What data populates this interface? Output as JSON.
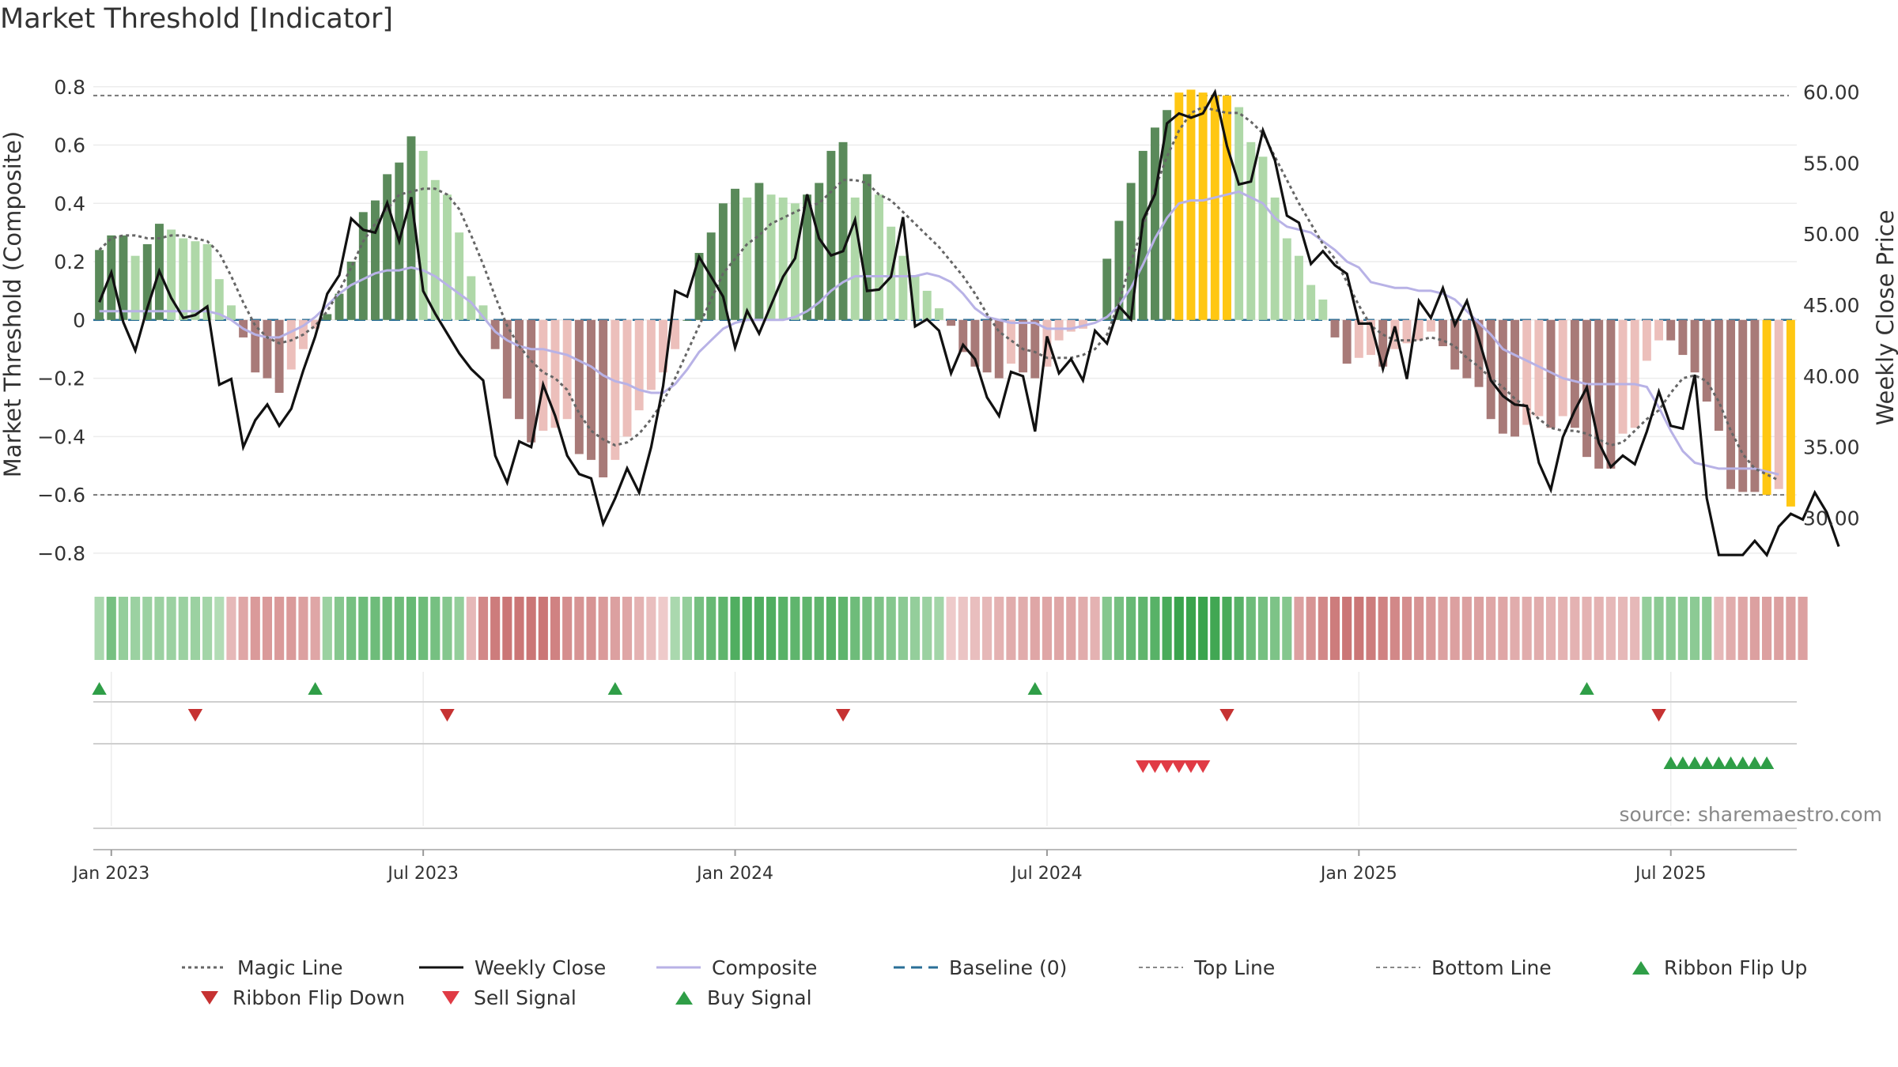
{
  "title": "Market Threshold [Indicator]",
  "source": "source: sharemaestro.com",
  "colors": {
    "bull_strong": "#5a8a5a",
    "bull_weak": "#afd8a8",
    "bear_strong": "#a87a78",
    "bear_weak": "#ecbfbb",
    "extreme": "#ffc712",
    "weekly_close": "#111111",
    "composite": "#b8b2e6",
    "magic_line": "#666666",
    "baseline": "#2a6f97",
    "threshold_line": "#777777",
    "ribbon_up": "#2f9e47",
    "ribbon_down": "#c63232",
    "sell": "#e03b45",
    "buy": "#2f9e47"
  },
  "chart_data": {
    "type": "bar+line",
    "y_left_label": "Market Threshold (Composite)",
    "y_right_label": "Weekly Close Price",
    "y_left_ticks": [
      "0.8",
      "0.6",
      "0.4",
      "0.2",
      "0",
      "−0.2",
      "−0.4",
      "−0.6",
      "−0.8"
    ],
    "y_left_values": [
      0.8,
      0.6,
      0.4,
      0.2,
      0,
      -0.2,
      -0.4,
      -0.6,
      -0.8
    ],
    "y_left_range": [
      -0.86,
      0.84
    ],
    "y_right_ticks": [
      "60.00",
      "55.00",
      "50.00",
      "45.00",
      "40.00",
      "35.00",
      "30.00"
    ],
    "y_right_values": [
      60,
      55,
      50,
      45,
      40,
      35,
      30
    ],
    "y_right_range": [
      26.3,
      61.2
    ],
    "x_ticks": [
      "Jan 2023",
      "Jul 2023",
      "Jan 2024",
      "Jul 2024",
      "Jan 2025",
      "Jul 2025"
    ],
    "x_tick_weeks": [
      1,
      27,
      53,
      79,
      105,
      131
    ],
    "top_line": 0.77,
    "bottom_line": -0.6,
    "baseline": 0,
    "composite_histogram": [
      0.24,
      0.29,
      0.29,
      0.22,
      0.26,
      0.33,
      0.31,
      0.28,
      0.27,
      0.26,
      0.14,
      0.05,
      -0.06,
      -0.18,
      -0.2,
      -0.25,
      -0.17,
      -0.1,
      -0.03,
      0.02,
      0.09,
      0.2,
      0.37,
      0.41,
      0.5,
      0.54,
      0.63,
      0.58,
      0.48,
      0.43,
      0.3,
      0.15,
      0.05,
      -0.1,
      -0.27,
      -0.34,
      -0.42,
      -0.38,
      -0.37,
      -0.34,
      -0.46,
      -0.48,
      -0.54,
      -0.48,
      -0.4,
      -0.31,
      -0.24,
      -0.18,
      -0.1,
      0.0,
      0.23,
      0.3,
      0.4,
      0.45,
      0.42,
      0.47,
      0.43,
      0.42,
      0.4,
      0.43,
      0.47,
      0.58,
      0.61,
      0.42,
      0.5,
      0.43,
      0.32,
      0.22,
      0.15,
      0.1,
      0.04,
      -0.02,
      -0.11,
      -0.16,
      -0.18,
      -0.2,
      -0.15,
      -0.18,
      -0.2,
      -0.16,
      -0.07,
      -0.04,
      -0.03,
      0.0,
      0.21,
      0.34,
      0.47,
      0.58,
      0.66,
      0.72,
      0.78,
      0.79,
      0.78,
      0.77,
      0.77,
      0.73,
      0.61,
      0.56,
      0.42,
      0.28,
      0.22,
      0.12,
      0.07,
      -0.06,
      -0.15,
      -0.13,
      -0.12,
      -0.16,
      -0.1,
      -0.08,
      -0.07,
      -0.04,
      -0.09,
      -0.17,
      -0.2,
      -0.23,
      -0.34,
      -0.39,
      -0.4,
      -0.36,
      -0.33,
      -0.37,
      -0.33,
      -0.37,
      -0.47,
      -0.51,
      -0.51,
      -0.39,
      -0.37,
      -0.14,
      -0.07,
      -0.07,
      -0.12,
      -0.18,
      -0.28,
      -0.38,
      -0.58,
      -0.59,
      -0.59,
      -0.6,
      -0.58,
      -0.64
    ],
    "weekly_close": [
      45.2,
      47.3,
      43.8,
      41.8,
      44.8,
      47.4,
      45.5,
      44.1,
      44.3,
      44.9,
      39.4,
      39.8,
      35.0,
      36.9,
      38.0,
      36.5,
      37.7,
      40.4,
      42.8,
      45.8,
      47.1,
      51.1,
      50.3,
      50.1,
      52.2,
      49.5,
      52.6,
      46.0,
      44.4,
      43.0,
      41.6,
      40.5,
      39.7,
      34.4,
      32.5,
      35.4,
      35.0,
      39.4,
      37.2,
      34.4,
      33.1,
      32.8,
      29.6,
      31.4,
      33.5,
      31.8,
      35.0,
      39.3,
      46.0,
      45.6,
      48.4,
      47.0,
      45.6,
      42.0,
      44.6,
      43.0,
      45.0,
      47.0,
      48.3,
      52.8,
      49.7,
      48.5,
      48.8,
      51.0,
      46.0,
      46.1,
      47.0,
      51.2,
      43.5,
      44.0,
      43.2,
      40.2,
      42.2,
      41.2,
      38.5,
      37.2,
      40.3,
      40.0,
      36.1,
      42.8,
      40.2,
      41.2,
      39.7,
      43.2,
      42.3,
      44.9,
      44.0,
      51.0,
      52.8,
      57.8,
      58.5,
      58.2,
      58.5,
      60.0,
      56.2,
      53.5,
      53.7,
      57.3,
      55.2,
      51.3,
      50.8,
      47.9,
      48.8,
      47.8,
      47.2,
      43.7,
      43.7,
      40.5,
      43.5,
      39.8,
      45.3,
      44.1,
      46.2,
      43.6,
      45.3,
      42.6,
      39.7,
      38.6,
      38.0,
      37.9,
      33.9,
      32.0,
      35.7,
      37.6,
      39.2,
      35.3,
      33.6,
      34.4,
      33.8,
      36.1,
      38.9,
      36.5,
      36.3,
      40.1,
      31.4,
      27.4,
      27.4,
      27.4,
      28.4,
      27.4,
      29.4,
      30.3,
      29.9,
      31.8,
      30.4,
      28.0
    ],
    "composite_line": [
      0.03,
      0.03,
      0.03,
      0.03,
      0.03,
      0.03,
      0.03,
      0.03,
      0.03,
      0.03,
      0.02,
      0.0,
      -0.03,
      -0.05,
      -0.06,
      -0.06,
      -0.04,
      -0.02,
      0.01,
      0.05,
      0.09,
      0.12,
      0.14,
      0.16,
      0.17,
      0.17,
      0.18,
      0.17,
      0.15,
      0.12,
      0.09,
      0.06,
      0.01,
      -0.04,
      -0.07,
      -0.09,
      -0.1,
      -0.1,
      -0.11,
      -0.12,
      -0.14,
      -0.16,
      -0.19,
      -0.21,
      -0.22,
      -0.24,
      -0.25,
      -0.25,
      -0.22,
      -0.17,
      -0.11,
      -0.07,
      -0.03,
      -0.01,
      0.0,
      0.0,
      0.0,
      0.0,
      0.01,
      0.03,
      0.06,
      0.1,
      0.13,
      0.15,
      0.15,
      0.15,
      0.15,
      0.15,
      0.15,
      0.16,
      0.15,
      0.13,
      0.09,
      0.04,
      0.01,
      0.0,
      -0.01,
      -0.01,
      -0.01,
      -0.03,
      -0.03,
      -0.03,
      -0.02,
      -0.01,
      0.01,
      0.05,
      0.11,
      0.19,
      0.28,
      0.35,
      0.4,
      0.41,
      0.41,
      0.42,
      0.43,
      0.44,
      0.42,
      0.4,
      0.35,
      0.32,
      0.31,
      0.3,
      0.27,
      0.24,
      0.2,
      0.18,
      0.13,
      0.12,
      0.11,
      0.11,
      0.1,
      0.1,
      0.09,
      0.07,
      0.03,
      -0.01,
      -0.05,
      -0.1,
      -0.12,
      -0.14,
      -0.16,
      -0.18,
      -0.2,
      -0.21,
      -0.22,
      -0.22,
      -0.22,
      -0.22,
      -0.22,
      -0.23,
      -0.3,
      -0.38,
      -0.45,
      -0.49,
      -0.5,
      -0.51,
      -0.51,
      -0.51,
      -0.51,
      -0.52,
      -0.53
    ],
    "magic_line": [
      0.24,
      0.28,
      0.29,
      0.29,
      0.28,
      0.28,
      0.29,
      0.29,
      0.28,
      0.27,
      0.23,
      0.15,
      0.06,
      -0.02,
      -0.06,
      -0.08,
      -0.07,
      -0.05,
      -0.02,
      0.03,
      0.1,
      0.18,
      0.27,
      0.33,
      0.38,
      0.43,
      0.44,
      0.45,
      0.45,
      0.43,
      0.38,
      0.29,
      0.19,
      0.08,
      -0.02,
      -0.09,
      -0.14,
      -0.18,
      -0.2,
      -0.24,
      -0.32,
      -0.38,
      -0.41,
      -0.43,
      -0.42,
      -0.39,
      -0.34,
      -0.28,
      -0.2,
      -0.11,
      -0.02,
      0.07,
      0.16,
      0.21,
      0.26,
      0.29,
      0.33,
      0.35,
      0.37,
      0.39,
      0.4,
      0.44,
      0.48,
      0.48,
      0.47,
      0.43,
      0.41,
      0.37,
      0.33,
      0.29,
      0.25,
      0.2,
      0.15,
      0.09,
      0.02,
      -0.04,
      -0.07,
      -0.1,
      -0.11,
      -0.13,
      -0.13,
      -0.13,
      -0.12,
      -0.1,
      -0.05,
      0.06,
      0.2,
      0.32,
      0.45,
      0.56,
      0.65,
      0.71,
      0.73,
      0.72,
      0.71,
      0.71,
      0.68,
      0.64,
      0.56,
      0.48,
      0.4,
      0.33,
      0.26,
      0.21,
      0.13,
      0.05,
      -0.02,
      -0.05,
      -0.07,
      -0.07,
      -0.07,
      -0.06,
      -0.07,
      -0.09,
      -0.13,
      -0.16,
      -0.2,
      -0.23,
      -0.27,
      -0.3,
      -0.34,
      -0.37,
      -0.38,
      -0.38,
      -0.39,
      -0.41,
      -0.43,
      -0.42,
      -0.38,
      -0.34,
      -0.31,
      -0.25,
      -0.2,
      -0.19,
      -0.21,
      -0.28,
      -0.38,
      -0.46,
      -0.51,
      -0.53,
      -0.55
    ],
    "ribbon_strength": [
      0.2,
      0.55,
      0.35,
      0.3,
      0.3,
      0.3,
      0.3,
      0.3,
      0.3,
      0.25,
      0.15,
      -0.3,
      -0.45,
      -0.55,
      -0.55,
      -0.55,
      -0.55,
      -0.5,
      -0.45,
      0.3,
      0.45,
      0.55,
      0.6,
      0.6,
      0.6,
      0.6,
      0.65,
      0.6,
      0.55,
      0.45,
      0.35,
      -0.3,
      -0.7,
      -0.8,
      -0.85,
      -0.85,
      -0.85,
      -0.85,
      -0.75,
      -0.65,
      -0.6,
      -0.6,
      -0.55,
      -0.5,
      -0.45,
      -0.35,
      -0.25,
      -0.15,
      0.2,
      0.35,
      0.55,
      0.65,
      0.7,
      0.8,
      0.8,
      0.8,
      0.8,
      0.75,
      0.7,
      0.7,
      0.7,
      0.75,
      0.7,
      0.6,
      0.55,
      0.5,
      0.45,
      0.4,
      0.35,
      0.3,
      0.25,
      -0.15,
      -0.2,
      -0.25,
      -0.3,
      -0.35,
      -0.4,
      -0.4,
      -0.45,
      -0.45,
      -0.45,
      -0.45,
      -0.4,
      -0.35,
      0.45,
      0.55,
      0.65,
      0.7,
      0.75,
      0.85,
      0.95,
      0.95,
      0.95,
      0.9,
      0.85,
      0.75,
      0.6,
      0.55,
      0.5,
      0.45,
      -0.5,
      -0.6,
      -0.7,
      -0.8,
      -0.85,
      -0.85,
      -0.8,
      -0.75,
      -0.7,
      -0.65,
      -0.6,
      -0.55,
      -0.5,
      -0.5,
      -0.5,
      -0.5,
      -0.45,
      -0.45,
      -0.4,
      -0.4,
      -0.4,
      -0.35,
      -0.35,
      -0.35,
      -0.35,
      -0.35,
      -0.3,
      -0.3,
      -0.3,
      0.35,
      0.4,
      0.4,
      0.4,
      0.4,
      0.4,
      -0.3,
      -0.4,
      -0.45,
      -0.5,
      -0.5,
      -0.5,
      -0.5,
      -0.5
    ],
    "ribbon_flip_up_weeks": [
      0,
      18,
      43,
      78,
      124
    ],
    "ribbon_flip_down_weeks": [
      8,
      29,
      62,
      94,
      130
    ],
    "sell_signal_weeks": [
      87,
      88,
      89,
      90,
      91,
      92
    ],
    "buy_signal_weeks": [
      131,
      132,
      133,
      134,
      135,
      136,
      137,
      138,
      139
    ],
    "x_axis": "weekly, Dec 2022 – Sep 2025"
  },
  "legend": [
    {
      "label": "Magic Line",
      "kind": "dotted",
      "color": "#666666"
    },
    {
      "label": "Weekly Close",
      "kind": "solid",
      "color": "#111111"
    },
    {
      "label": "Composite",
      "kind": "solid",
      "color": "#b8b2e6"
    },
    {
      "label": "Baseline (0)",
      "kind": "dashed",
      "color": "#2a6f97"
    },
    {
      "label": "Top Line",
      "kind": "dashed-thin",
      "color": "#888888"
    },
    {
      "label": "Bottom Line",
      "kind": "dashed-thin",
      "color": "#888888"
    },
    {
      "label": "Ribbon Flip Up",
      "kind": "tri-up",
      "color": "#2f9e47"
    },
    {
      "label": "Ribbon Flip Down",
      "kind": "tri-down",
      "color": "#c63232"
    },
    {
      "label": "Sell Signal",
      "kind": "tri-down",
      "color": "#e03b45"
    },
    {
      "label": "Buy Signal",
      "kind": "tri-up",
      "color": "#2f9e47"
    }
  ]
}
